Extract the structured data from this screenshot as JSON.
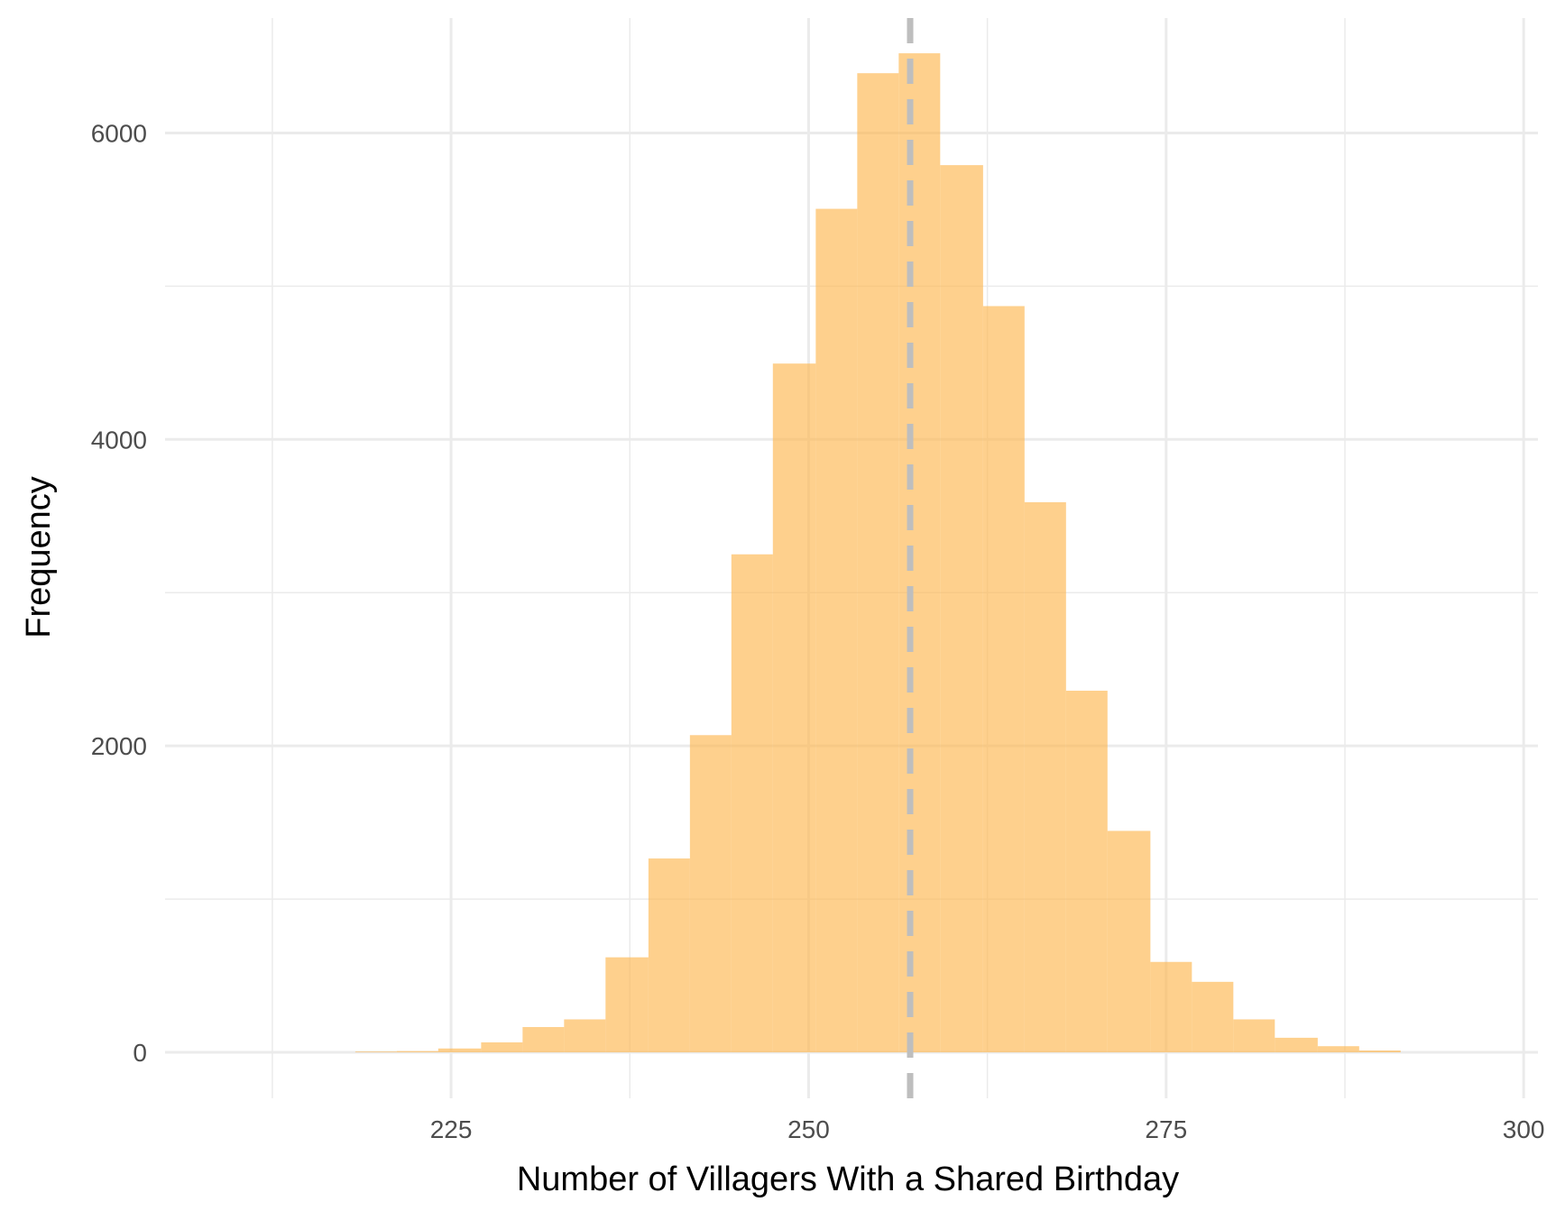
{
  "chart_data": {
    "type": "histogram",
    "title": "",
    "xlabel": "Number of Villagers With a Shared Birthday",
    "ylabel": "Frequency",
    "xlim": [
      205,
      301
    ],
    "ylim": [
      -300,
      6750
    ],
    "x_ticks": [
      225,
      250,
      275,
      300
    ],
    "y_ticks": [
      0,
      2000,
      4000,
      6000
    ],
    "grid": true,
    "bin_width": 2.925,
    "bins": [
      {
        "x0": 218.3,
        "x1": 221.2,
        "count": 5
      },
      {
        "x0": 221.2,
        "x1": 224.1,
        "count": 8
      },
      {
        "x0": 224.1,
        "x1": 227.1,
        "count": 25
      },
      {
        "x0": 227.1,
        "x1": 230.0,
        "count": 65
      },
      {
        "x0": 230.0,
        "x1": 232.9,
        "count": 165
      },
      {
        "x0": 232.9,
        "x1": 235.8,
        "count": 215
      },
      {
        "x0": 235.8,
        "x1": 238.8,
        "count": 620
      },
      {
        "x0": 238.8,
        "x1": 241.7,
        "count": 1265
      },
      {
        "x0": 241.7,
        "x1": 244.6,
        "count": 2070
      },
      {
        "x0": 244.6,
        "x1": 247.5,
        "count": 3250
      },
      {
        "x0": 247.5,
        "x1": 250.5,
        "count": 4495
      },
      {
        "x0": 250.5,
        "x1": 253.4,
        "count": 5505
      },
      {
        "x0": 253.4,
        "x1": 256.3,
        "count": 6390
      },
      {
        "x0": 256.3,
        "x1": 259.2,
        "count": 6520
      },
      {
        "x0": 259.2,
        "x1": 262.2,
        "count": 5790
      },
      {
        "x0": 262.2,
        "x1": 265.1,
        "count": 4870
      },
      {
        "x0": 265.1,
        "x1": 268.0,
        "count": 3590
      },
      {
        "x0": 268.0,
        "x1": 270.9,
        "count": 2360
      },
      {
        "x0": 270.9,
        "x1": 273.9,
        "count": 1445
      },
      {
        "x0": 273.9,
        "x1": 276.8,
        "count": 590
      },
      {
        "x0": 276.8,
        "x1": 279.7,
        "count": 460
      },
      {
        "x0": 279.7,
        "x1": 282.6,
        "count": 215
      },
      {
        "x0": 282.6,
        "x1": 285.6,
        "count": 95
      },
      {
        "x0": 285.6,
        "x1": 288.5,
        "count": 40
      },
      {
        "x0": 288.5,
        "x1": 291.4,
        "count": 12
      }
    ],
    "bar_color": "#fdb750",
    "bar_opacity": 0.65,
    "reference_line": {
      "x": 257.1,
      "style": "dashed",
      "color": "#bebebe"
    }
  }
}
